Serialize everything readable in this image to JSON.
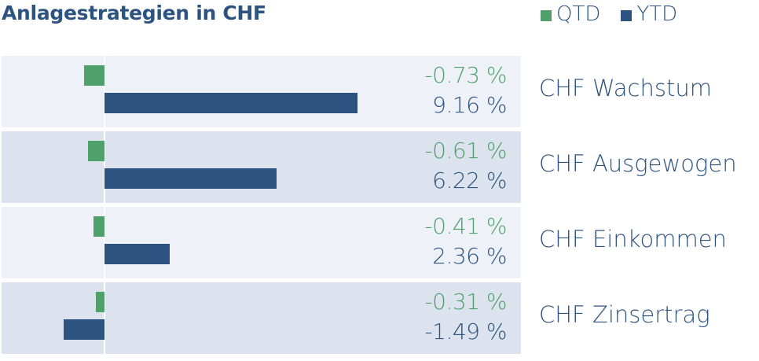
{
  "chart_data": {
    "type": "bar",
    "title": "Anlagestrategien in CHF",
    "categories": [
      "CHF Wachstum",
      "CHF Ausgewogen",
      "CHF Einkommen",
      "CHF Zinsertrag"
    ],
    "series": [
      {
        "name": "QTD",
        "color": "#4fa06a",
        "values": [
          -0.73,
          -0.61,
          -0.41,
          -0.31
        ],
        "labels": [
          "-0.73 %",
          "-0.61 %",
          "-0.41 %",
          "-0.31 %"
        ]
      },
      {
        "name": "YTD",
        "color": "#2d5380",
        "values": [
          9.16,
          6.22,
          2.36,
          -1.49
        ],
        "labels": [
          "9.16 %",
          "6.22 %",
          "2.36 %",
          "-1.49 %"
        ]
      }
    ],
    "orientation": "horizontal",
    "grid": false,
    "legend_position": "top-right",
    "row_colors": [
      "#eef2f8",
      "#dce2ee"
    ]
  }
}
